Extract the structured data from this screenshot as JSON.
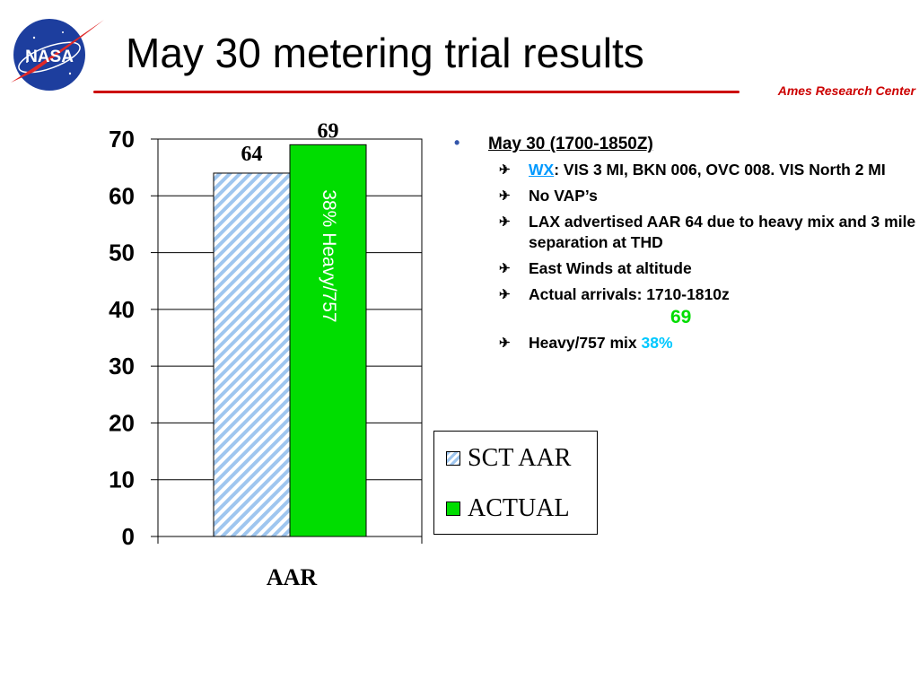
{
  "header": {
    "title": "May 30 metering trial results",
    "center": "Ames Research Center",
    "logo_text": "NASA"
  },
  "chart_data": {
    "type": "bar",
    "categories": [
      "AAR"
    ],
    "series": [
      {
        "name": "SCT AAR",
        "values": [
          64
        ],
        "data_label": "64",
        "fill": "hatched-light-blue"
      },
      {
        "name": "ACTUAL",
        "values": [
          69
        ],
        "data_label": "69",
        "fill": "#00dd00"
      }
    ],
    "bar_annotation": "38% Heavy/757",
    "xlabel": "AAR",
    "ylabel": "",
    "ylim": [
      0,
      70
    ],
    "yticks": [
      0,
      10,
      20,
      30,
      40,
      50,
      60,
      70
    ],
    "grid": true,
    "legend": "right"
  },
  "bullets": {
    "main": "May 30 (1700-1850Z)",
    "items": [
      {
        "prefix": "WX",
        "text": ": VIS 3 MI, BKN 006, OVC 008. VIS North 2 MI"
      },
      {
        "text": "No VAP’s"
      },
      {
        "text": "LAX advertised AAR 64 due to heavy mix and 3 mile separation at THD"
      },
      {
        "text": "East Winds at altitude"
      },
      {
        "text": "Actual arrivals: 1710-1810z",
        "value": "69"
      },
      {
        "text": "Heavy/757 mix",
        "value": "38%"
      }
    ]
  },
  "colors": {
    "accent_red": "#cc0000",
    "actual_green": "#00dd00",
    "sct_hatch_blue": "#9fc6ef",
    "wx_blue": "#0099ff",
    "cyan_value": "#00c8ff"
  }
}
